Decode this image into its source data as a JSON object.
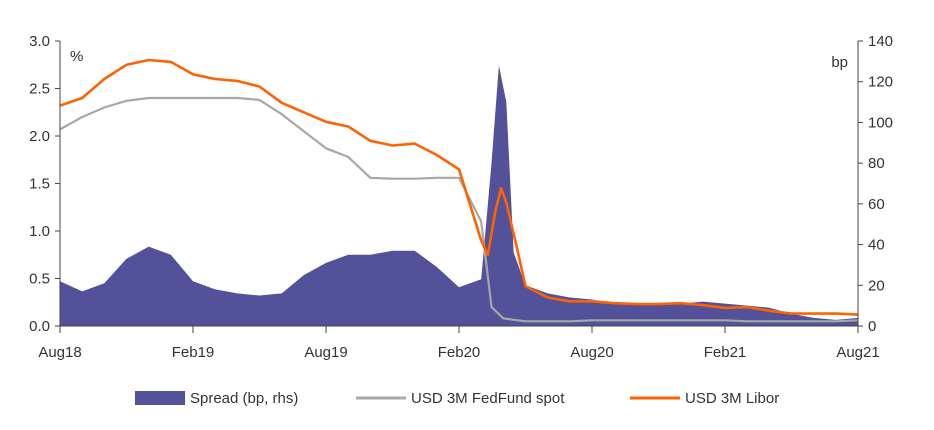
{
  "chart_data": {
    "type": "line",
    "title": "",
    "x_ticks": [
      "Aug18",
      "Feb19",
      "Aug19",
      "Feb20",
      "Aug20",
      "Feb21",
      "Aug21"
    ],
    "x_range": [
      "Aug18",
      "Aug21"
    ],
    "y_left": {
      "unit": "%",
      "ticks": [
        "0.0",
        "0.5",
        "1.0",
        "1.5",
        "2.0",
        "2.5",
        "3.0"
      ],
      "range": [
        0,
        3.0
      ]
    },
    "y_right": {
      "unit": "bp",
      "ticks": [
        "0",
        "20",
        "40",
        "60",
        "80",
        "100",
        "120",
        "140"
      ],
      "range": [
        0,
        140
      ]
    },
    "grid": false,
    "legend_position": "bottom",
    "series": [
      {
        "name": "Spread (bp, rhs)",
        "type": "area",
        "axis": "right",
        "color": "#525199",
        "x": [
          "2018-08",
          "2018-09",
          "2018-10",
          "2018-11",
          "2018-12",
          "2019-01",
          "2019-02",
          "2019-03",
          "2019-04",
          "2019-05",
          "2019-06",
          "2019-07",
          "2019-08",
          "2019-09",
          "2019-10",
          "2019-11",
          "2019-12",
          "2020-01",
          "2020-02",
          "2020-03-01",
          "2020-03-15",
          "2020-03-25",
          "2020-04-05",
          "2020-04-15",
          "2020-05",
          "2020-06",
          "2020-07",
          "2020-08",
          "2020-09",
          "2020-10",
          "2020-11",
          "2020-12",
          "2021-01",
          "2021-02",
          "2021-03",
          "2021-04",
          "2021-05",
          "2021-06",
          "2021-07",
          "2021-08"
        ],
        "values": [
          22,
          17,
          21,
          33,
          39,
          35,
          22,
          18,
          16,
          15,
          16,
          25,
          31,
          35,
          35,
          37,
          37,
          29,
          19,
          23,
          80,
          128,
          110,
          36,
          20,
          16,
          14,
          13,
          11,
          11,
          11,
          11,
          12,
          11,
          10,
          9,
          6,
          4,
          3,
          4
        ]
      },
      {
        "name": "USD 3M FedFund spot",
        "type": "line",
        "axis": "left",
        "color": "#a7a7a7",
        "x": [
          "2018-08",
          "2018-09",
          "2018-10",
          "2018-11",
          "2018-12",
          "2019-01",
          "2019-02",
          "2019-03",
          "2019-04",
          "2019-05",
          "2019-06",
          "2019-07",
          "2019-08",
          "2019-09",
          "2019-10",
          "2019-11",
          "2019-12",
          "2020-01",
          "2020-02",
          "2020-03-01",
          "2020-03-15",
          "2020-04",
          "2020-05",
          "2020-06",
          "2020-07",
          "2020-08",
          "2020-09",
          "2020-10",
          "2020-11",
          "2020-12",
          "2021-01",
          "2021-02",
          "2021-03",
          "2021-04",
          "2021-05",
          "2021-06",
          "2021-07",
          "2021-08"
        ],
        "values": [
          2.07,
          2.2,
          2.3,
          2.37,
          2.4,
          2.4,
          2.4,
          2.4,
          2.4,
          2.38,
          2.23,
          2.05,
          1.87,
          1.78,
          1.56,
          1.55,
          1.55,
          1.56,
          1.56,
          1.1,
          0.2,
          0.08,
          0.05,
          0.05,
          0.05,
          0.06,
          0.06,
          0.06,
          0.06,
          0.06,
          0.06,
          0.06,
          0.05,
          0.05,
          0.05,
          0.05,
          0.05,
          0.06
        ]
      },
      {
        "name": "USD 3M Libor",
        "type": "line",
        "axis": "left",
        "color": "#ff6200",
        "x": [
          "2018-08",
          "2018-09",
          "2018-10",
          "2018-11",
          "2018-12",
          "2019-01",
          "2019-02",
          "2019-03",
          "2019-04",
          "2019-05",
          "2019-06",
          "2019-07",
          "2019-08",
          "2019-09",
          "2019-10",
          "2019-11",
          "2019-12",
          "2020-01",
          "2020-02",
          "2020-03-01",
          "2020-03-10",
          "2020-03-20",
          "2020-03-28",
          "2020-04-05",
          "2020-04-20",
          "2020-05",
          "2020-06",
          "2020-07",
          "2020-08",
          "2020-09",
          "2020-10",
          "2020-11",
          "2020-12",
          "2021-01",
          "2021-02",
          "2021-03",
          "2021-04",
          "2021-05",
          "2021-06",
          "2021-07",
          "2021-08"
        ],
        "values": [
          2.32,
          2.4,
          2.6,
          2.75,
          2.8,
          2.78,
          2.65,
          2.6,
          2.58,
          2.52,
          2.35,
          2.25,
          2.15,
          2.1,
          1.95,
          1.9,
          1.92,
          1.8,
          1.65,
          0.9,
          0.75,
          1.2,
          1.45,
          1.3,
          0.8,
          0.42,
          0.3,
          0.26,
          0.26,
          0.24,
          0.23,
          0.23,
          0.24,
          0.22,
          0.19,
          0.2,
          0.16,
          0.13,
          0.13,
          0.13,
          0.12
        ]
      }
    ]
  }
}
